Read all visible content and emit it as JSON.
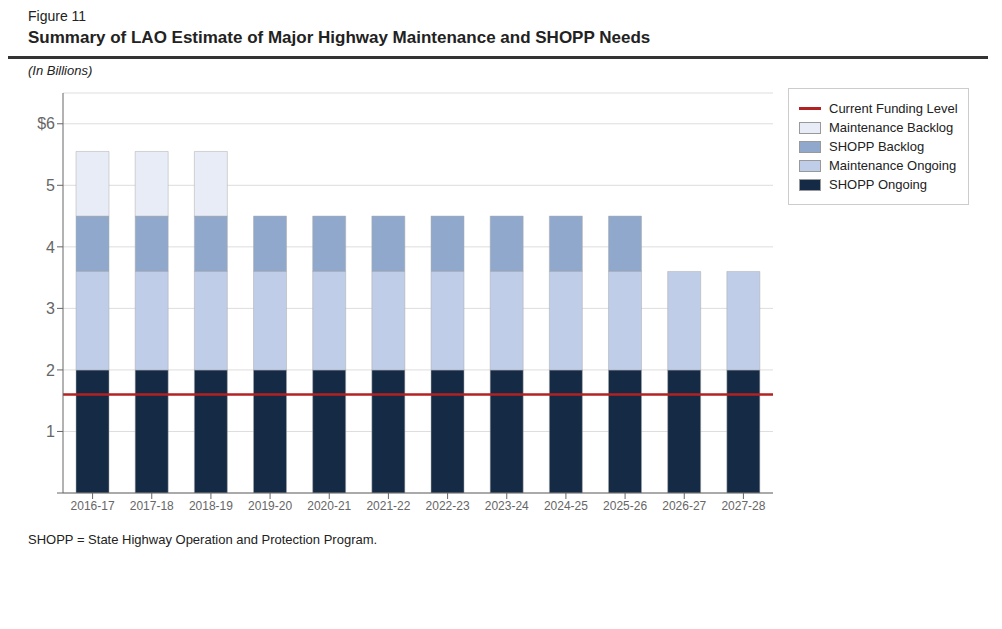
{
  "chart_data": {
    "type": "bar",
    "title": "Summary of LAO Estimate of Major Highway Maintenance and SHOPP Needs",
    "subtitle": "(In Billions)",
    "annotations": [
      "Figure 11",
      "SHOPP = State Highway Operation and Protection Program."
    ],
    "categories": [
      "2016-17",
      "2017-18",
      "2018-19",
      "2019-20",
      "2020-21",
      "2021-22",
      "2022-23",
      "2023-24",
      "2024-25",
      "2025-26",
      "2026-27",
      "2027-28"
    ],
    "series": [
      {
        "name": "SHOPP Ongoing",
        "color": "#152a45",
        "values": [
          2.0,
          2.0,
          2.0,
          2.0,
          2.0,
          2.0,
          2.0,
          2.0,
          2.0,
          2.0,
          2.0,
          2.0
        ]
      },
      {
        "name": "Maintenance Ongoing",
        "color": "#bfcde8",
        "values": [
          1.6,
          1.6,
          1.6,
          1.6,
          1.6,
          1.6,
          1.6,
          1.6,
          1.6,
          1.6,
          1.6,
          1.6
        ]
      },
      {
        "name": "SHOPP Backlog",
        "color": "#8fa8cc",
        "values": [
          0.9,
          0.9,
          0.9,
          0.9,
          0.9,
          0.9,
          0.9,
          0.9,
          0.9,
          0.9,
          0.0,
          0.0
        ]
      },
      {
        "name": "Maintenance Backlog",
        "color": "#e8ecf6",
        "values": [
          1.05,
          1.05,
          1.05,
          0.0,
          0.0,
          0.0,
          0.0,
          0.0,
          0.0,
          0.0,
          0.0,
          0.0
        ]
      }
    ],
    "reference_line": {
      "name": "Current Funding Level",
      "value": 1.6,
      "color": "#b22222"
    },
    "stacked": true,
    "ylim": [
      0,
      6.5
    ],
    "yticks": [
      {
        "value": 0,
        "label": ""
      },
      1,
      2,
      3,
      4,
      5,
      {
        "value": 6,
        "label": "$6"
      }
    ],
    "grid": true,
    "legend": "right"
  }
}
